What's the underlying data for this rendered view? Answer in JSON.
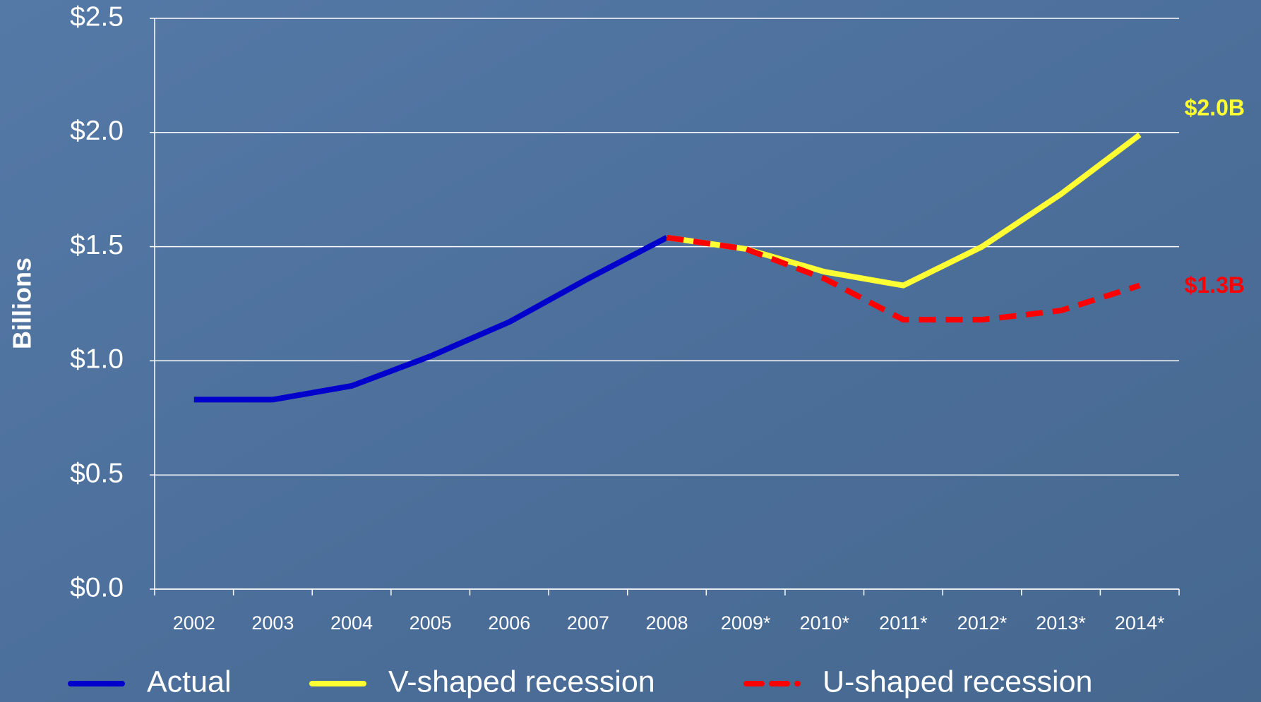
{
  "chart_data": {
    "type": "line",
    "y_label": "Billions",
    "categories": [
      "2002",
      "2003",
      "2004",
      "2005",
      "2006",
      "2007",
      "2008",
      "2009*",
      "2010*",
      "2011*",
      "2012*",
      "2013*",
      "2014*"
    ],
    "series": [
      {
        "name": "Actual",
        "color": "#0000cc",
        "dash": false,
        "values": [
          0.83,
          0.83,
          0.89,
          1.02,
          1.17,
          1.36,
          1.54,
          null,
          null,
          null,
          null,
          null,
          null
        ]
      },
      {
        "name": "V-shaped recession",
        "color": "#ffff33",
        "dash": false,
        "values": [
          null,
          null,
          null,
          null,
          null,
          null,
          1.54,
          1.49,
          1.39,
          1.33,
          1.5,
          1.73,
          1.99
        ]
      },
      {
        "name": "U-shaped recession",
        "color": "#ff0000",
        "dash": true,
        "values": [
          null,
          null,
          null,
          null,
          null,
          null,
          1.54,
          1.49,
          1.36,
          1.18,
          1.18,
          1.22,
          1.33
        ]
      }
    ],
    "annotations": [
      {
        "text": "$2.0B",
        "color": "#ffff33",
        "series": 1
      },
      {
        "text": "$1.3B",
        "color": "#ff0000",
        "series": 2
      }
    ],
    "ylim": [
      0,
      2.5
    ],
    "yticks": [
      {
        "value": 0,
        "label": "$0.0"
      },
      {
        "value": 0.5,
        "label": "$0.5"
      },
      {
        "value": 1.0,
        "label": "$1.0"
      },
      {
        "value": 1.5,
        "label": "$1.5"
      },
      {
        "value": 2.0,
        "label": "$2.0"
      },
      {
        "value": 2.5,
        "label": "$2.5"
      }
    ],
    "grid": true
  }
}
